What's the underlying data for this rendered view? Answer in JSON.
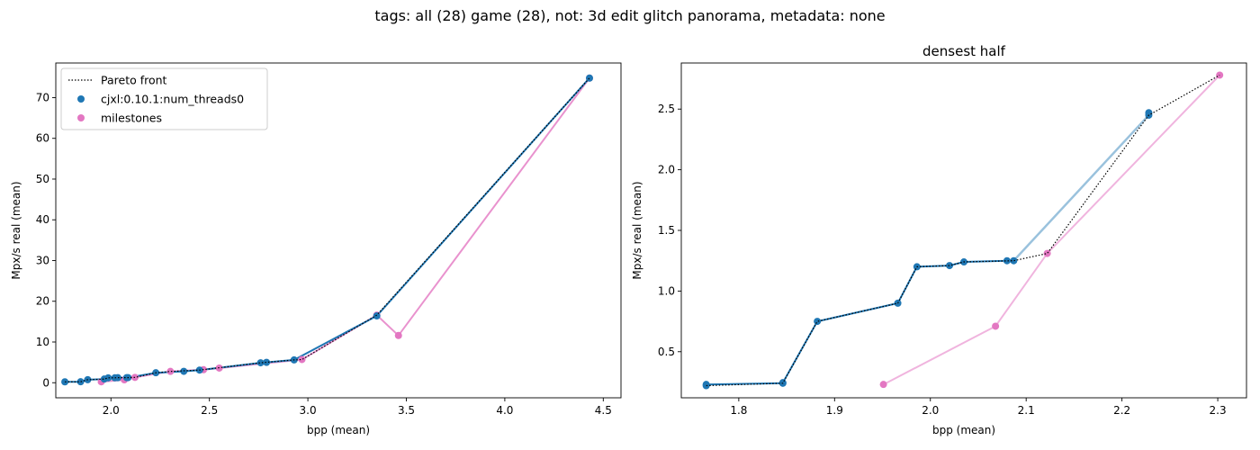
{
  "figure": {
    "suptitle": "tags: all (28) game (28), not: 3d edit glitch panorama, metadata: none"
  },
  "chart_data": [
    {
      "type": "scatter",
      "title": "",
      "xlabel": "bpp (mean)",
      "ylabel": "Mpx/s real (mean)",
      "xlim": [
        1.72,
        4.59
      ],
      "ylim": [
        -3.7,
        78.5
      ],
      "xticks": [
        2.0,
        2.5,
        3.0,
        3.5,
        4.0,
        4.5
      ],
      "xtick_labels": [
        "2.0",
        "2.5",
        "3.0",
        "3.5",
        "4.0",
        "4.5"
      ],
      "yticks": [
        0,
        10,
        20,
        30,
        40,
        50,
        60,
        70
      ],
      "ytick_labels": [
        "0",
        "10",
        "20",
        "30",
        "40",
        "50",
        "60",
        "70"
      ],
      "legend": {
        "position": "top-left",
        "entries": [
          {
            "label": "Pareto front",
            "style": "dotted-line",
            "color": "#000000"
          },
          {
            "label": "cjxl:0.10.1:num_threads0",
            "style": "marker",
            "color": "#1f77b4"
          },
          {
            "label": "milestones",
            "style": "marker",
            "color": "#e377c2"
          }
        ]
      },
      "series": [
        {
          "name": "cjxl:0.10.1:num_threads0",
          "color": "#1f77b4",
          "line": true,
          "points": [
            [
              1.766,
              0.22
            ],
            [
              1.846,
              0.24
            ],
            [
              1.882,
              0.75
            ],
            [
              1.966,
              0.9
            ],
            [
              1.986,
              1.2
            ],
            [
              2.02,
              1.21
            ],
            [
              2.035,
              1.24
            ],
            [
              2.08,
              1.25
            ],
            [
              2.087,
              1.25
            ],
            [
              2.228,
              2.45
            ],
            [
              2.37,
              2.8
            ],
            [
              2.45,
              3.1
            ],
            [
              2.76,
              4.9
            ],
            [
              2.79,
              5.0
            ],
            [
              2.93,
              5.6
            ],
            [
              3.35,
              16.4
            ],
            [
              4.43,
              74.8
            ]
          ]
        },
        {
          "name": "milestones",
          "color": "#e377c2",
          "line": true,
          "points": [
            [
              1.951,
              0.23
            ],
            [
              2.068,
              0.71
            ],
            [
              2.122,
              1.31
            ],
            [
              2.302,
              2.78
            ],
            [
              2.47,
              3.2
            ],
            [
              2.55,
              3.6
            ],
            [
              2.97,
              5.7
            ],
            [
              3.35,
              16.6
            ],
            [
              3.46,
              11.6
            ],
            [
              4.43,
              74.8
            ]
          ]
        },
        {
          "name": "Pareto front",
          "color": "#000000",
          "style": "dotted",
          "points": [
            [
              1.766,
              0.22
            ],
            [
              1.846,
              0.24
            ],
            [
              1.882,
              0.75
            ],
            [
              1.966,
              0.9
            ],
            [
              1.986,
              1.2
            ],
            [
              2.02,
              1.21
            ],
            [
              2.035,
              1.24
            ],
            [
              2.087,
              1.25
            ],
            [
              2.122,
              1.31
            ],
            [
              2.228,
              2.45
            ],
            [
              2.302,
              2.78
            ],
            [
              2.45,
              3.1
            ],
            [
              2.76,
              4.9
            ],
            [
              2.93,
              5.6
            ],
            [
              2.97,
              5.7
            ],
            [
              3.35,
              16.6
            ],
            [
              4.43,
              74.8
            ]
          ]
        }
      ]
    },
    {
      "type": "scatter",
      "title": "densest half",
      "xlabel": "bpp (mean)",
      "ylabel": "Mpx/s real (mean)",
      "xlim": [
        1.74,
        2.33
      ],
      "ylim": [
        0.12,
        2.88
      ],
      "xticks": [
        1.8,
        1.9,
        2.0,
        2.1,
        2.2,
        2.3
      ],
      "xtick_labels": [
        "1.8",
        "1.9",
        "2.0",
        "2.1",
        "2.2",
        "2.3"
      ],
      "yticks": [
        0.5,
        1.0,
        1.5,
        2.0,
        2.5
      ],
      "ytick_labels": [
        "0.5",
        "1.0",
        "1.5",
        "2.0",
        "2.5"
      ],
      "series": [
        {
          "name": "cjxl:0.10.1:num_threads0",
          "color": "#1f77b4",
          "line": true,
          "faded_segment_from": 2.087,
          "points": [
            [
              1.766,
              0.22
            ],
            [
              1.766,
              0.23
            ],
            [
              1.846,
              0.24
            ],
            [
              1.846,
              0.245
            ],
            [
              1.882,
              0.75
            ],
            [
              1.966,
              0.9
            ],
            [
              1.986,
              1.2
            ],
            [
              2.02,
              1.21
            ],
            [
              2.035,
              1.24
            ],
            [
              2.08,
              1.25
            ],
            [
              2.087,
              1.25
            ],
            [
              2.228,
              2.45
            ],
            [
              2.228,
              2.47
            ]
          ]
        },
        {
          "name": "milestones",
          "color": "#e377c2",
          "line": true,
          "points": [
            [
              1.951,
              0.23
            ],
            [
              2.068,
              0.71
            ],
            [
              2.122,
              1.31
            ],
            [
              2.302,
              2.78
            ]
          ]
        },
        {
          "name": "Pareto front",
          "color": "#000000",
          "style": "dotted",
          "points": [
            [
              1.766,
              0.22
            ],
            [
              1.846,
              0.24
            ],
            [
              1.882,
              0.75
            ],
            [
              1.966,
              0.9
            ],
            [
              1.986,
              1.2
            ],
            [
              2.02,
              1.21
            ],
            [
              2.035,
              1.24
            ],
            [
              2.087,
              1.25
            ],
            [
              2.122,
              1.31
            ],
            [
              2.228,
              2.45
            ],
            [
              2.302,
              2.78
            ]
          ]
        }
      ]
    }
  ]
}
